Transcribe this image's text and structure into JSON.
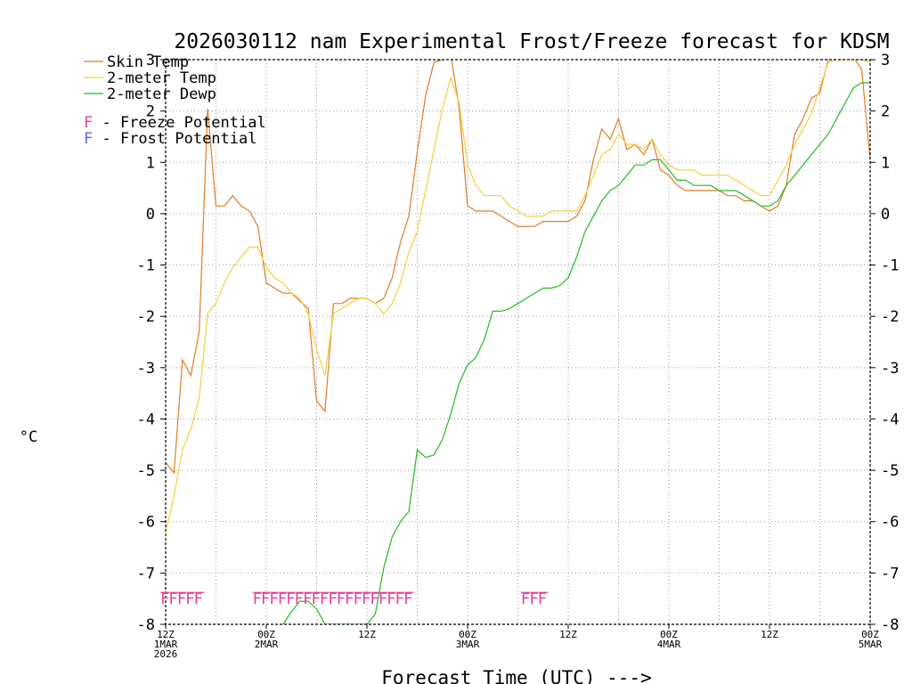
{
  "chart_data": {
    "type": "line",
    "title": "2026030112 nam Experimental Frost/Freeze forecast for KDSM",
    "ylabel": "°C",
    "xlabel": "Forecast Time (UTC) --->",
    "ylim": [
      -8,
      3
    ],
    "yticks": [
      "-8",
      "-7",
      "-6",
      "-5",
      "-4",
      "-3",
      "-2",
      "-1",
      "0",
      "1",
      "2",
      "3"
    ],
    "x_range_hours": [
      0,
      84
    ],
    "grid": "dotted",
    "legend_position": "top-left",
    "x_ticks": [
      {
        "hour": 0,
        "lines": [
          "12Z",
          "1MAR",
          "2026"
        ]
      },
      {
        "hour": 12,
        "lines": [
          "00Z",
          "2MAR"
        ]
      },
      {
        "hour": 24,
        "lines": [
          "12Z"
        ]
      },
      {
        "hour": 36,
        "lines": [
          "00Z",
          "3MAR"
        ]
      },
      {
        "hour": 48,
        "lines": [
          "12Z"
        ]
      },
      {
        "hour": 60,
        "lines": [
          "00Z",
          "4MAR"
        ]
      },
      {
        "hour": 72,
        "lines": [
          "12Z"
        ]
      },
      {
        "hour": 84,
        "lines": [
          "00Z",
          "5MAR"
        ]
      }
    ],
    "series": [
      {
        "name": "Skin Temp",
        "color": "#e07b28",
        "points": [
          [
            0,
            -4.85
          ],
          [
            1,
            -5.05
          ],
          [
            2,
            -2.85
          ],
          [
            3,
            -3.15
          ],
          [
            4,
            -2.3
          ],
          [
            5,
            2.05
          ],
          [
            6,
            0.15
          ],
          [
            7,
            0.15
          ],
          [
            8,
            0.35
          ],
          [
            9,
            0.15
          ],
          [
            10,
            0.05
          ],
          [
            11,
            -0.25
          ],
          [
            12,
            -1.35
          ],
          [
            13,
            -1.45
          ],
          [
            14,
            -1.55
          ],
          [
            15,
            -1.55
          ],
          [
            16,
            -1.7
          ],
          [
            17,
            -1.85
          ],
          [
            18,
            -3.65
          ],
          [
            19,
            -3.85
          ],
          [
            20,
            -1.75
          ],
          [
            21,
            -1.75
          ],
          [
            22,
            -1.65
          ],
          [
            23,
            -1.65
          ],
          [
            24,
            -1.65
          ],
          [
            25,
            -1.75
          ],
          [
            26,
            -1.65
          ],
          [
            27,
            -1.25
          ],
          [
            28,
            -0.55
          ],
          [
            29,
            -0.05
          ],
          [
            30,
            1.2
          ],
          [
            31,
            2.3
          ],
          [
            32,
            2.95
          ],
          [
            33,
            3.0
          ],
          [
            34,
            3.1
          ],
          [
            35,
            2.05
          ],
          [
            36,
            0.15
          ],
          [
            37,
            0.05
          ],
          [
            38,
            0.05
          ],
          [
            39,
            0.05
          ],
          [
            40,
            -0.05
          ],
          [
            41,
            -0.15
          ],
          [
            42,
            -0.25
          ],
          [
            43,
            -0.25
          ],
          [
            44,
            -0.25
          ],
          [
            45,
            -0.15
          ],
          [
            46,
            -0.15
          ],
          [
            47,
            -0.15
          ],
          [
            48,
            -0.15
          ],
          [
            49,
            -0.05
          ],
          [
            50,
            0.25
          ],
          [
            51,
            1.05
          ],
          [
            52,
            1.65
          ],
          [
            53,
            1.45
          ],
          [
            54,
            1.85
          ],
          [
            55,
            1.25
          ],
          [
            56,
            1.35
          ],
          [
            57,
            1.15
          ],
          [
            58,
            1.45
          ],
          [
            59,
            0.85
          ],
          [
            60,
            0.75
          ],
          [
            61,
            0.55
          ],
          [
            62,
            0.45
          ],
          [
            63,
            0.45
          ],
          [
            64,
            0.45
          ],
          [
            65,
            0.45
          ],
          [
            66,
            0.45
          ],
          [
            67,
            0.35
          ],
          [
            68,
            0.35
          ],
          [
            69,
            0.25
          ],
          [
            70,
            0.25
          ],
          [
            71,
            0.15
          ],
          [
            72,
            0.05
          ],
          [
            73,
            0.15
          ],
          [
            74,
            0.55
          ],
          [
            75,
            1.55
          ],
          [
            76,
            1.85
          ],
          [
            77,
            2.25
          ],
          [
            78,
            2.35
          ],
          [
            79,
            3.0
          ],
          [
            80,
            3.05
          ],
          [
            81,
            3.05
          ],
          [
            82,
            3.05
          ],
          [
            83,
            2.8
          ],
          [
            84,
            1.05
          ]
        ]
      },
      {
        "name": "2-meter Temp",
        "color": "#f2d03a",
        "points": [
          [
            0,
            -6.2
          ],
          [
            1,
            -5.5
          ],
          [
            2,
            -4.6
          ],
          [
            3,
            -4.2
          ],
          [
            4,
            -3.6
          ],
          [
            5,
            -1.95
          ],
          [
            6,
            -1.75
          ],
          [
            7,
            -1.35
          ],
          [
            8,
            -1.05
          ],
          [
            9,
            -0.85
          ],
          [
            10,
            -0.65
          ],
          [
            11,
            -0.65
          ],
          [
            12,
            -1.05
          ],
          [
            13,
            -1.25
          ],
          [
            14,
            -1.35
          ],
          [
            15,
            -1.55
          ],
          [
            16,
            -1.65
          ],
          [
            17,
            -1.95
          ],
          [
            18,
            -2.65
          ],
          [
            19,
            -3.15
          ],
          [
            20,
            -1.95
          ],
          [
            21,
            -1.85
          ],
          [
            22,
            -1.75
          ],
          [
            23,
            -1.65
          ],
          [
            24,
            -1.65
          ],
          [
            25,
            -1.75
          ],
          [
            26,
            -1.95
          ],
          [
            27,
            -1.75
          ],
          [
            28,
            -1.35
          ],
          [
            29,
            -0.75
          ],
          [
            30,
            -0.35
          ],
          [
            31,
            0.45
          ],
          [
            32,
            1.25
          ],
          [
            33,
            2.05
          ],
          [
            34,
            2.65
          ],
          [
            35,
            2.15
          ],
          [
            36,
            0.95
          ],
          [
            37,
            0.55
          ],
          [
            38,
            0.35
          ],
          [
            39,
            0.35
          ],
          [
            40,
            0.35
          ],
          [
            41,
            0.15
          ],
          [
            42,
            0.05
          ],
          [
            43,
            -0.05
          ],
          [
            44,
            -0.05
          ],
          [
            45,
            -0.05
          ],
          [
            46,
            0.05
          ],
          [
            47,
            0.05
          ],
          [
            48,
            0.05
          ],
          [
            49,
            0.05
          ],
          [
            50,
            0.35
          ],
          [
            51,
            0.75
          ],
          [
            52,
            1.15
          ],
          [
            53,
            1.25
          ],
          [
            54,
            1.55
          ],
          [
            55,
            1.35
          ],
          [
            56,
            1.35
          ],
          [
            57,
            1.25
          ],
          [
            58,
            1.45
          ],
          [
            59,
            1.15
          ],
          [
            60,
            0.95
          ],
          [
            61,
            0.85
          ],
          [
            62,
            0.85
          ],
          [
            63,
            0.85
          ],
          [
            64,
            0.75
          ],
          [
            65,
            0.75
          ],
          [
            66,
            0.75
          ],
          [
            67,
            0.75
          ],
          [
            68,
            0.65
          ],
          [
            69,
            0.55
          ],
          [
            70,
            0.45
          ],
          [
            71,
            0.35
          ],
          [
            72,
            0.35
          ],
          [
            73,
            0.65
          ],
          [
            74,
            0.95
          ],
          [
            75,
            1.35
          ],
          [
            76,
            1.65
          ],
          [
            77,
            1.95
          ],
          [
            78,
            2.45
          ],
          [
            79,
            2.95
          ],
          [
            80,
            3.0
          ],
          [
            81,
            3.0
          ],
          [
            82,
            3.0
          ],
          [
            83,
            3.0
          ],
          [
            84,
            2.95
          ]
        ]
      },
      {
        "name": "2-meter Dewp",
        "color": "#22bb22",
        "points": [
          [
            14,
            -8.0
          ],
          [
            15,
            -7.75
          ],
          [
            16,
            -7.55
          ],
          [
            17,
            -7.55
          ],
          [
            18,
            -7.7
          ],
          [
            19,
            -8.0
          ],
          [
            24,
            -8.0
          ],
          [
            25,
            -7.8
          ],
          [
            26,
            -6.9
          ],
          [
            27,
            -6.3
          ],
          [
            28,
            -6.0
          ],
          [
            29,
            -5.8
          ],
          [
            30,
            -4.6
          ],
          [
            31,
            -4.75
          ],
          [
            32,
            -4.7
          ],
          [
            33,
            -4.4
          ],
          [
            34,
            -3.9
          ],
          [
            35,
            -3.3
          ],
          [
            36,
            -2.95
          ],
          [
            37,
            -2.8
          ],
          [
            38,
            -2.45
          ],
          [
            39,
            -1.9
          ],
          [
            40,
            -1.9
          ],
          [
            41,
            -1.85
          ],
          [
            42,
            -1.75
          ],
          [
            43,
            -1.65
          ],
          [
            44,
            -1.55
          ],
          [
            45,
            -1.45
          ],
          [
            46,
            -1.45
          ],
          [
            47,
            -1.4
          ],
          [
            48,
            -1.25
          ],
          [
            49,
            -0.85
          ],
          [
            50,
            -0.35
          ],
          [
            51,
            -0.05
          ],
          [
            52,
            0.25
          ],
          [
            53,
            0.45
          ],
          [
            54,
            0.55
          ],
          [
            55,
            0.75
          ],
          [
            56,
            0.95
          ],
          [
            57,
            0.95
          ],
          [
            58,
            1.05
          ],
          [
            59,
            1.05
          ],
          [
            60,
            0.85
          ],
          [
            61,
            0.65
          ],
          [
            62,
            0.65
          ],
          [
            63,
            0.55
          ],
          [
            64,
            0.55
          ],
          [
            65,
            0.55
          ],
          [
            66,
            0.45
          ],
          [
            67,
            0.45
          ],
          [
            68,
            0.45
          ],
          [
            69,
            0.35
          ],
          [
            70,
            0.25
          ],
          [
            71,
            0.15
          ],
          [
            72,
            0.15
          ],
          [
            73,
            0.25
          ],
          [
            74,
            0.55
          ],
          [
            75,
            0.75
          ],
          [
            76,
            0.95
          ],
          [
            77,
            1.15
          ],
          [
            78,
            1.35
          ],
          [
            79,
            1.55
          ],
          [
            80,
            1.85
          ],
          [
            81,
            2.15
          ],
          [
            82,
            2.45
          ],
          [
            83,
            2.55
          ],
          [
            84,
            2.55
          ]
        ]
      }
    ],
    "legend": [
      {
        "label": "Skin Temp",
        "color": "#e07b28",
        "type": "line"
      },
      {
        "label": "2-meter Temp",
        "color": "#f2d03a",
        "type": "line"
      },
      {
        "label": "2-meter Dewp",
        "color": "#22bb22",
        "type": "line"
      },
      {
        "letter": "F",
        "label": " - Freeze Potential",
        "color": "#e0409a",
        "type": "marker"
      },
      {
        "letter": "F",
        "label": " - Frost Potential",
        "color": "#5566ee",
        "type": "marker"
      }
    ],
    "freeze_potential": {
      "letter": "F",
      "color": "#e0409a",
      "value": -7.5,
      "hours": [
        0,
        1,
        2,
        3,
        4,
        11,
        12,
        13,
        14,
        15,
        16,
        17,
        18,
        19,
        20,
        21,
        22,
        23,
        24,
        25,
        26,
        27,
        28,
        29,
        43,
        44,
        45
      ]
    }
  }
}
